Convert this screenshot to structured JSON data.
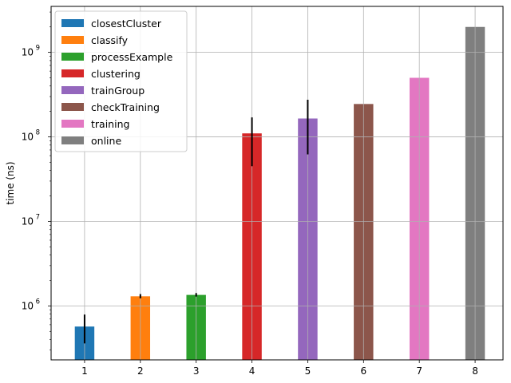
{
  "chart_data": {
    "type": "bar",
    "title": "",
    "xlabel": "",
    "ylabel": "time (ns)",
    "yscale": "log",
    "ylim": [
      230000,
      3500000000
    ],
    "xlim": [
      0.4,
      8.5
    ],
    "grid": true,
    "legend_position": "top-left",
    "x_ticks": [
      "1",
      "2",
      "3",
      "4",
      "5",
      "6",
      "7",
      "8"
    ],
    "y_ticks": [
      {
        "value": 1000000,
        "base": "10",
        "exp": "6"
      },
      {
        "value": 10000000,
        "base": "10",
        "exp": "7"
      },
      {
        "value": 100000000,
        "base": "10",
        "exp": "8"
      },
      {
        "value": 1000000000,
        "base": "10",
        "exp": "9"
      }
    ],
    "series": [
      {
        "name": "closestCluster",
        "x": 1,
        "value": 570000,
        "err_low": 360000,
        "err_high": 790000,
        "color": "#1f77b4"
      },
      {
        "name": "classify",
        "x": 2,
        "value": 1300000,
        "err_low": 1230000,
        "err_high": 1380000,
        "color": "#ff7f0e"
      },
      {
        "name": "processExample",
        "x": 3,
        "value": 1350000,
        "err_low": 1290000,
        "err_high": 1420000,
        "color": "#2ca02c"
      },
      {
        "name": "clustering",
        "x": 4,
        "value": 110000000,
        "err_low": 45000000,
        "err_high": 170000000,
        "color": "#d62728"
      },
      {
        "name": "trainGroup",
        "x": 5,
        "value": 165000000,
        "err_low": 62000000,
        "err_high": 275000000,
        "color": "#9467bd"
      },
      {
        "name": "checkTraining",
        "x": 6,
        "value": 245000000,
        "err_low": null,
        "err_high": null,
        "color": "#8c564b"
      },
      {
        "name": "training",
        "x": 7,
        "value": 500000000,
        "err_low": null,
        "err_high": null,
        "color": "#e377c2"
      },
      {
        "name": "online",
        "x": 8,
        "value": 2000000000,
        "err_low": null,
        "err_high": null,
        "color": "#7f7f7f"
      }
    ]
  }
}
